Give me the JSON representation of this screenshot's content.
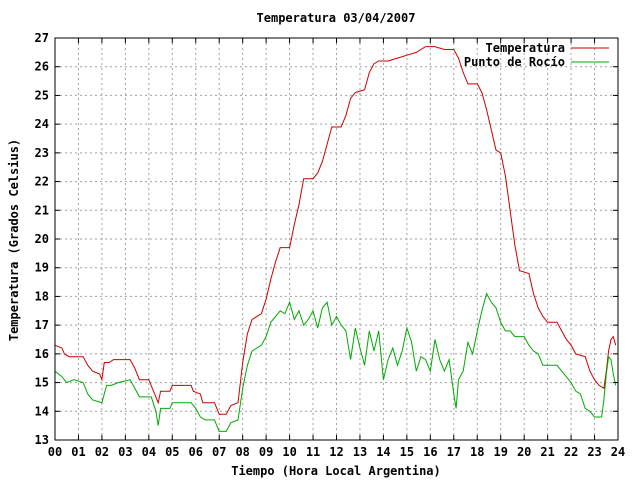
{
  "chart_data": {
    "type": "line",
    "title": "Temperatura 03/04/2007",
    "xlabel": "Tiempo (Hora Local Argentina)",
    "ylabel": "Temperatura (Grados Celsius)",
    "xlim": [
      0,
      24
    ],
    "ylim": [
      13,
      27
    ],
    "x_ticks": [
      0,
      1,
      2,
      3,
      4,
      5,
      6,
      7,
      8,
      9,
      10,
      11,
      12,
      13,
      14,
      15,
      16,
      17,
      18,
      19,
      20,
      21,
      22,
      23,
      24
    ],
    "x_tick_labels": [
      "00",
      "01",
      "02",
      "03",
      "04",
      "05",
      "06",
      "07",
      "08",
      "09",
      "10",
      "11",
      "12",
      "13",
      "14",
      "15",
      "16",
      "17",
      "18",
      "19",
      "20",
      "21",
      "22",
      "23",
      "24"
    ],
    "y_ticks": [
      13,
      14,
      15,
      16,
      17,
      18,
      19,
      20,
      21,
      22,
      23,
      24,
      25,
      26,
      27
    ],
    "grid": true,
    "legend_position": "top-right",
    "series": [
      {
        "name": "Temperatura",
        "color": "#cc0000",
        "points": [
          [
            0.0,
            16.3
          ],
          [
            0.3,
            16.2
          ],
          [
            0.4,
            16.0
          ],
          [
            0.6,
            15.9
          ],
          [
            1.2,
            15.9
          ],
          [
            1.4,
            15.6
          ],
          [
            1.6,
            15.4
          ],
          [
            1.9,
            15.3
          ],
          [
            2.0,
            15.1
          ],
          [
            2.1,
            15.7
          ],
          [
            2.3,
            15.7
          ],
          [
            2.5,
            15.8
          ],
          [
            3.2,
            15.8
          ],
          [
            3.4,
            15.5
          ],
          [
            3.6,
            15.1
          ],
          [
            4.0,
            15.1
          ],
          [
            4.2,
            14.7
          ],
          [
            4.4,
            14.3
          ],
          [
            4.5,
            14.7
          ],
          [
            4.9,
            14.7
          ],
          [
            5.0,
            14.9
          ],
          [
            5.8,
            14.9
          ],
          [
            5.9,
            14.7
          ],
          [
            6.2,
            14.6
          ],
          [
            6.3,
            14.3
          ],
          [
            6.8,
            14.3
          ],
          [
            7.0,
            13.9
          ],
          [
            7.3,
            13.9
          ],
          [
            7.5,
            14.2
          ],
          [
            7.8,
            14.3
          ],
          [
            8.0,
            15.7
          ],
          [
            8.2,
            16.7
          ],
          [
            8.4,
            17.2
          ],
          [
            8.8,
            17.4
          ],
          [
            9.0,
            17.9
          ],
          [
            9.2,
            18.6
          ],
          [
            9.4,
            19.2
          ],
          [
            9.6,
            19.7
          ],
          [
            10.0,
            19.7
          ],
          [
            10.2,
            20.5
          ],
          [
            10.4,
            21.2
          ],
          [
            10.6,
            22.1
          ],
          [
            11.0,
            22.1
          ],
          [
            11.2,
            22.3
          ],
          [
            11.4,
            22.7
          ],
          [
            11.6,
            23.3
          ],
          [
            11.8,
            23.9
          ],
          [
            12.2,
            23.9
          ],
          [
            12.4,
            24.3
          ],
          [
            12.6,
            24.9
          ],
          [
            12.8,
            25.1
          ],
          [
            13.2,
            25.2
          ],
          [
            13.4,
            25.8
          ],
          [
            13.6,
            26.1
          ],
          [
            13.8,
            26.2
          ],
          [
            14.2,
            26.2
          ],
          [
            14.6,
            26.3
          ],
          [
            15.0,
            26.4
          ],
          [
            15.4,
            26.5
          ],
          [
            15.8,
            26.7
          ],
          [
            16.2,
            26.7
          ],
          [
            16.6,
            26.6
          ],
          [
            17.0,
            26.6
          ],
          [
            17.2,
            26.3
          ],
          [
            17.4,
            25.8
          ],
          [
            17.6,
            25.4
          ],
          [
            18.0,
            25.4
          ],
          [
            18.2,
            25.1
          ],
          [
            18.4,
            24.5
          ],
          [
            18.6,
            23.8
          ],
          [
            18.8,
            23.1
          ],
          [
            19.0,
            23.0
          ],
          [
            19.2,
            22.2
          ],
          [
            19.4,
            21.0
          ],
          [
            19.6,
            19.8
          ],
          [
            19.8,
            18.9
          ],
          [
            20.2,
            18.8
          ],
          [
            20.4,
            18.1
          ],
          [
            20.6,
            17.6
          ],
          [
            20.8,
            17.3
          ],
          [
            21.0,
            17.1
          ],
          [
            21.4,
            17.1
          ],
          [
            21.6,
            16.8
          ],
          [
            21.8,
            16.5
          ],
          [
            22.0,
            16.3
          ],
          [
            22.2,
            16.0
          ],
          [
            22.6,
            15.9
          ],
          [
            22.8,
            15.4
          ],
          [
            23.0,
            15.1
          ],
          [
            23.2,
            14.9
          ],
          [
            23.4,
            14.8
          ],
          [
            23.5,
            15.4
          ],
          [
            23.6,
            16.1
          ],
          [
            23.7,
            16.5
          ],
          [
            23.8,
            16.6
          ],
          [
            23.9,
            16.3
          ]
        ]
      },
      {
        "name": "Punto de Rocío",
        "color": "#00aa00",
        "points": [
          [
            0.0,
            15.4
          ],
          [
            0.3,
            15.2
          ],
          [
            0.5,
            15.0
          ],
          [
            0.8,
            15.1
          ],
          [
            1.2,
            15.0
          ],
          [
            1.4,
            14.6
          ],
          [
            1.6,
            14.4
          ],
          [
            2.0,
            14.3
          ],
          [
            2.2,
            14.9
          ],
          [
            2.4,
            14.9
          ],
          [
            2.7,
            15.0
          ],
          [
            3.2,
            15.1
          ],
          [
            3.4,
            14.8
          ],
          [
            3.6,
            14.5
          ],
          [
            4.1,
            14.5
          ],
          [
            4.3,
            14.0
          ],
          [
            4.4,
            13.5
          ],
          [
            4.5,
            14.1
          ],
          [
            4.9,
            14.1
          ],
          [
            5.0,
            14.3
          ],
          [
            5.8,
            14.3
          ],
          [
            6.0,
            14.1
          ],
          [
            6.2,
            13.8
          ],
          [
            6.4,
            13.7
          ],
          [
            6.8,
            13.7
          ],
          [
            7.0,
            13.3
          ],
          [
            7.3,
            13.3
          ],
          [
            7.5,
            13.6
          ],
          [
            7.8,
            13.7
          ],
          [
            8.0,
            14.8
          ],
          [
            8.2,
            15.6
          ],
          [
            8.4,
            16.1
          ],
          [
            8.8,
            16.3
          ],
          [
            9.0,
            16.6
          ],
          [
            9.2,
            17.1
          ],
          [
            9.4,
            17.3
          ],
          [
            9.6,
            17.5
          ],
          [
            9.8,
            17.4
          ],
          [
            10.0,
            17.8
          ],
          [
            10.2,
            17.2
          ],
          [
            10.4,
            17.5
          ],
          [
            10.6,
            17.0
          ],
          [
            10.8,
            17.2
          ],
          [
            11.0,
            17.5
          ],
          [
            11.2,
            16.9
          ],
          [
            11.4,
            17.6
          ],
          [
            11.6,
            17.8
          ],
          [
            11.8,
            17.0
          ],
          [
            12.0,
            17.3
          ],
          [
            12.2,
            17.0
          ],
          [
            12.4,
            16.8
          ],
          [
            12.6,
            15.8
          ],
          [
            12.8,
            16.9
          ],
          [
            13.0,
            16.2
          ],
          [
            13.2,
            15.6
          ],
          [
            13.4,
            16.8
          ],
          [
            13.6,
            16.1
          ],
          [
            13.8,
            16.8
          ],
          [
            14.0,
            15.1
          ],
          [
            14.2,
            15.8
          ],
          [
            14.4,
            16.2
          ],
          [
            14.6,
            15.6
          ],
          [
            14.8,
            16.1
          ],
          [
            15.0,
            16.9
          ],
          [
            15.2,
            16.4
          ],
          [
            15.4,
            15.4
          ],
          [
            15.6,
            15.9
          ],
          [
            15.8,
            15.8
          ],
          [
            16.0,
            15.4
          ],
          [
            16.2,
            16.5
          ],
          [
            16.4,
            15.8
          ],
          [
            16.6,
            15.4
          ],
          [
            16.8,
            15.8
          ],
          [
            17.0,
            14.6
          ],
          [
            17.1,
            14.1
          ],
          [
            17.2,
            15.1
          ],
          [
            17.4,
            15.4
          ],
          [
            17.6,
            16.4
          ],
          [
            17.8,
            16.0
          ],
          [
            18.0,
            16.8
          ],
          [
            18.2,
            17.5
          ],
          [
            18.4,
            18.1
          ],
          [
            18.6,
            17.8
          ],
          [
            18.8,
            17.6
          ],
          [
            19.0,
            17.1
          ],
          [
            19.2,
            16.8
          ],
          [
            19.4,
            16.8
          ],
          [
            19.6,
            16.6
          ],
          [
            20.0,
            16.6
          ],
          [
            20.2,
            16.3
          ],
          [
            20.4,
            16.1
          ],
          [
            20.6,
            16.0
          ],
          [
            20.8,
            15.6
          ],
          [
            21.4,
            15.6
          ],
          [
            21.6,
            15.4
          ],
          [
            21.8,
            15.2
          ],
          [
            22.0,
            15.0
          ],
          [
            22.2,
            14.7
          ],
          [
            22.4,
            14.6
          ],
          [
            22.6,
            14.1
          ],
          [
            22.8,
            14.0
          ],
          [
            23.0,
            13.8
          ],
          [
            23.2,
            13.8
          ],
          [
            23.3,
            13.8
          ],
          [
            23.4,
            14.4
          ],
          [
            23.5,
            15.3
          ],
          [
            23.6,
            15.9
          ],
          [
            23.7,
            15.8
          ],
          [
            23.8,
            15.3
          ],
          [
            23.9,
            14.9
          ]
        ]
      }
    ]
  }
}
